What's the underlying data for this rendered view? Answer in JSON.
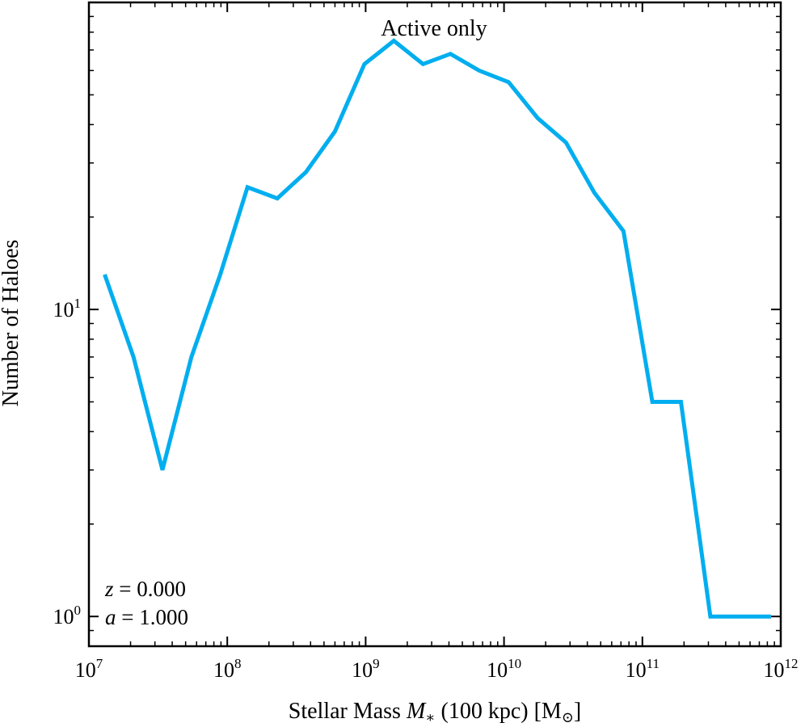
{
  "chart_data": {
    "type": "line",
    "title": "Active only",
    "xlabel": {
      "prefix": "Stellar Mass ",
      "symbol": "M",
      "subscript": "∗",
      "suffix": " (100 kpc) [M",
      "sun": "⊙",
      "close": "]"
    },
    "ylabel": "Number of Haloes",
    "xscale": "log",
    "yscale": "log",
    "xlim": [
      10000000.0,
      1000000000000.0
    ],
    "ylim": [
      0.8,
      100
    ],
    "xticks": [
      {
        "base": "10",
        "exp": "7",
        "value": 10000000.0
      },
      {
        "base": "10",
        "exp": "8",
        "value": 100000000.0
      },
      {
        "base": "10",
        "exp": "9",
        "value": 1000000000.0
      },
      {
        "base": "10",
        "exp": "10",
        "value": 10000000000.0
      },
      {
        "base": "10",
        "exp": "11",
        "value": 100000000000.0
      },
      {
        "base": "10",
        "exp": "12",
        "value": 1000000000000.0
      }
    ],
    "yticks": [
      {
        "base": "10",
        "exp": "0",
        "value": 1
      },
      {
        "base": "10",
        "exp": "1",
        "value": 10
      }
    ],
    "annotations": [
      {
        "var": "z",
        "eq": " = 0.000"
      },
      {
        "var": "a",
        "eq": " = 1.000"
      }
    ],
    "series": [
      {
        "color": "#00aeef",
        "x": [
          13000000.0,
          21000000.0,
          34000000.0,
          55000000.0,
          89000000.0,
          140000000.0,
          230000000.0,
          370000000.0,
          600000000.0,
          980000000.0,
          1600000000.0,
          2600000000.0,
          4100000000.0,
          6600000000.0,
          10800000000.0,
          17500000000.0,
          28000000000.0,
          45000000000.0,
          73000000000.0,
          118000000000.0,
          190000000000.0,
          310000000000.0,
          850000000000.0
        ],
        "y": [
          13,
          7,
          3,
          7,
          13,
          25,
          23,
          28,
          38,
          63,
          75,
          63,
          68,
          60,
          55,
          42,
          35,
          24,
          18,
          5,
          5,
          1,
          1
        ]
      }
    ]
  }
}
